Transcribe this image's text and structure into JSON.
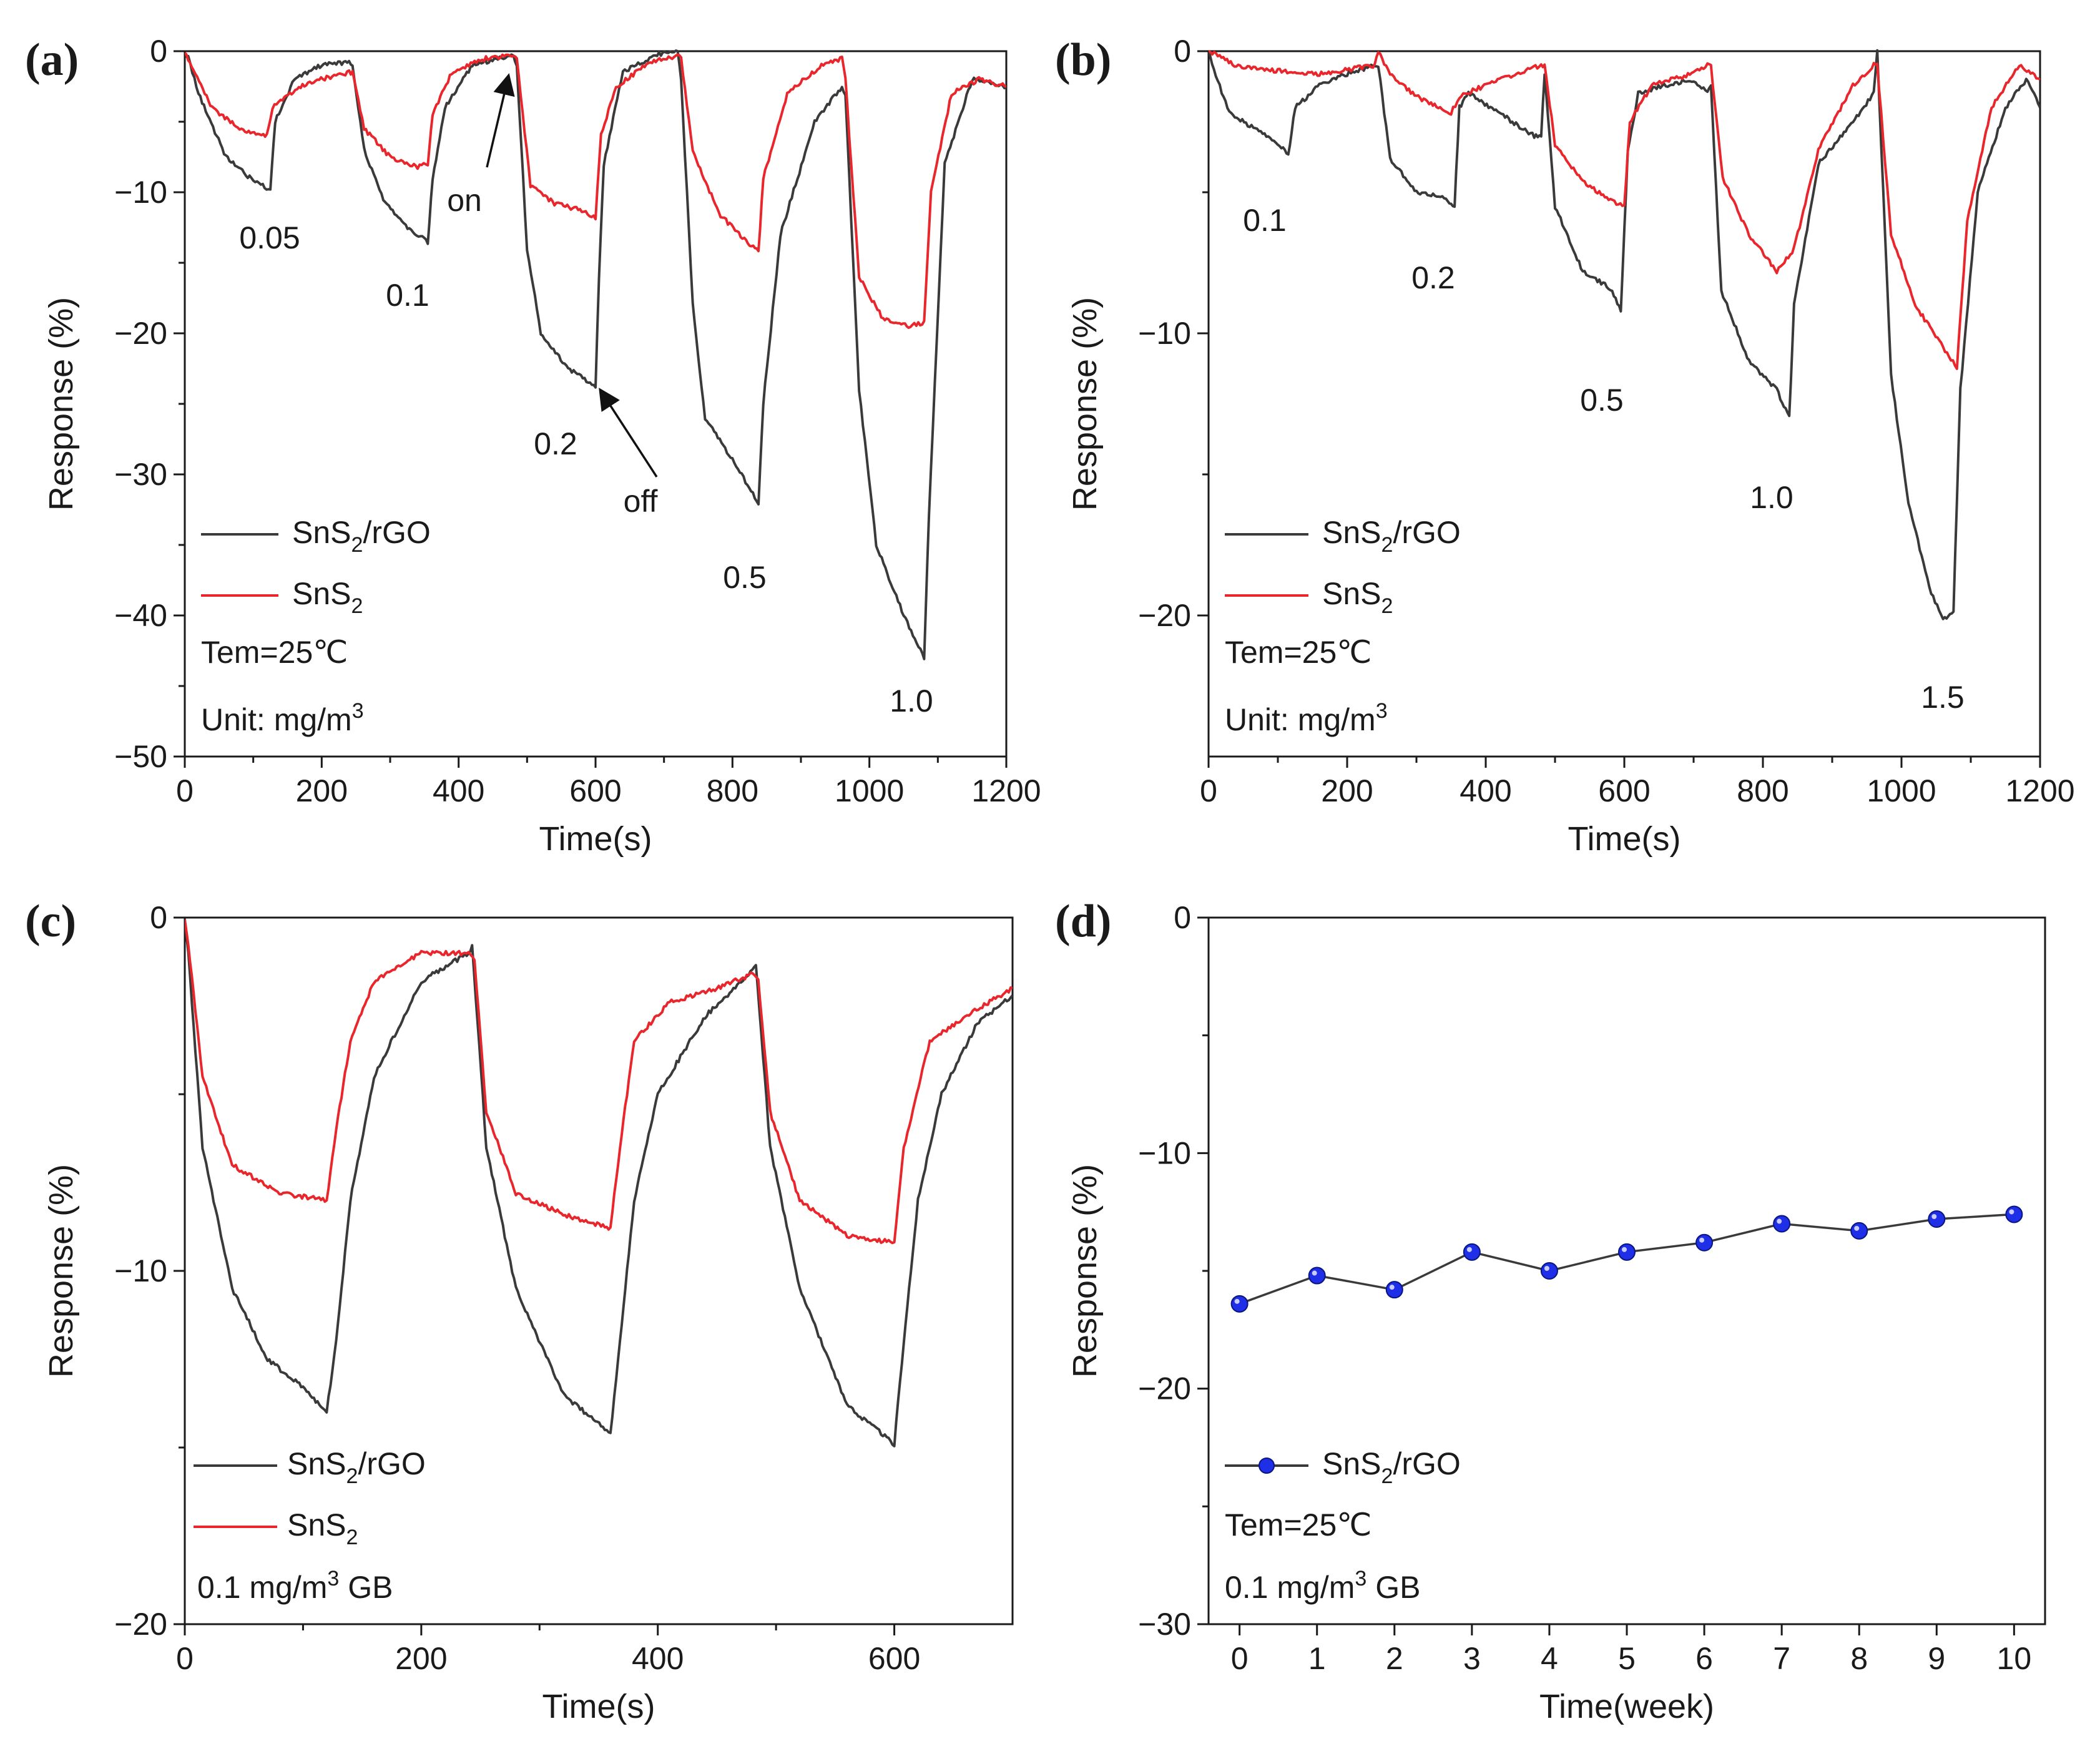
{
  "colors": {
    "rgo": "#3a3a3a",
    "sns2": "#e8262b",
    "marker": "#1f2fe8",
    "axis": "#1a1a1a"
  },
  "panels": [
    {
      "id": "a",
      "label": "(a)",
      "xlabel": "Time(s)",
      "ylabel": "Response (%)",
      "xlim": [
        0,
        1200
      ],
      "ylim": [
        -50,
        0
      ],
      "xticks": [
        0,
        200,
        400,
        600,
        800,
        1000,
        1200
      ],
      "yticks": [
        0,
        -10,
        -20,
        -30,
        -40,
        -50
      ],
      "legend": [
        {
          "series": "rgo",
          "main": "SnS",
          "sub": "2",
          "tail": "/rGO"
        },
        {
          "series": "sns2",
          "main": "SnS",
          "sub": "2",
          "tail": ""
        }
      ],
      "notes": [
        {
          "main": "Tem=25℃",
          "sup": ""
        },
        {
          "main": "Unit: mg/m",
          "sup": "3"
        }
      ],
      "concentrations": [
        "0.05",
        "0.1",
        "0.2",
        "0.5",
        "1.0"
      ],
      "arrows": {
        "on": "on",
        "off": "off"
      }
    },
    {
      "id": "b",
      "label": "(b)",
      "xlabel": "Time(s)",
      "ylabel": "Response (%)",
      "xlim": [
        0,
        1200
      ],
      "ylim": [
        -25,
        0
      ],
      "xticks": [
        0,
        200,
        400,
        600,
        800,
        1000,
        1200
      ],
      "yticks": [
        0,
        -10,
        -20
      ],
      "legend": [
        {
          "series": "rgo",
          "main": "SnS",
          "sub": "2",
          "tail": "/rGO"
        },
        {
          "series": "sns2",
          "main": "SnS",
          "sub": "2",
          "tail": ""
        }
      ],
      "notes": [
        {
          "main": "Tem=25℃",
          "sup": ""
        },
        {
          "main": "Unit: mg/m",
          "sup": "3"
        }
      ],
      "concentrations": [
        "0.1",
        "0.2",
        "0.5",
        "1.0",
        "1.5"
      ]
    },
    {
      "id": "c",
      "label": "(c)",
      "xlabel": "Time(s)",
      "ylabel": "Response (%)",
      "xlim": [
        0,
        700
      ],
      "ylim": [
        -20,
        0
      ],
      "xticks": [
        0,
        200,
        400,
        600
      ],
      "yticks": [
        0,
        -10,
        -20
      ],
      "legend": [
        {
          "series": "rgo",
          "main": "SnS",
          "sub": "2",
          "tail": "/rGO"
        },
        {
          "series": "sns2",
          "main": "SnS",
          "sub": "2",
          "tail": ""
        }
      ],
      "notes": [
        {
          "main": "0.1 mg/m",
          "sup": "3",
          "tail": " GB"
        }
      ]
    },
    {
      "id": "d",
      "label": "(d)",
      "xlabel": "Time(week)",
      "ylabel": "Response (%)",
      "xlim": [
        -0.4,
        10.4
      ],
      "ylim": [
        -30,
        0
      ],
      "xticks": [
        0,
        1,
        2,
        3,
        4,
        5,
        6,
        7,
        8,
        9,
        10
      ],
      "yticks": [
        0,
        -10,
        -20,
        -30
      ],
      "legend": [
        {
          "series": "marker",
          "main": "SnS",
          "sub": "2",
          "tail": "/rGO"
        }
      ],
      "notes": [
        {
          "main": "Tem=25℃",
          "sup": ""
        },
        {
          "main": "0.1 mg/m",
          "sup": "3",
          "tail": " GB"
        }
      ]
    }
  ],
  "chart_data": [
    {
      "panel": "a",
      "type": "line",
      "title": "",
      "xlabel": "Time(s)",
      "ylabel": "Response (%)",
      "xlim": [
        0,
        1200
      ],
      "ylim": [
        -50,
        0
      ],
      "series": [
        {
          "name": "SnS2/rGO",
          "color": "#3a3a3a",
          "x": [
            0,
            5,
            20,
            60,
            100,
            125,
            132,
            160,
            200,
            240,
            245,
            262,
            290,
            320,
            355,
            362,
            380,
            420,
            460,
            480,
            485,
            500,
            520,
            560,
            600,
            605,
            612,
            640,
            690,
            720,
            725,
            742,
            760,
            800,
            838,
            845,
            870,
            920,
            960,
            965,
            985,
            1010,
            1050,
            1080,
            1087,
            1110,
            1150,
            1200
          ],
          "y": [
            0,
            -0.5,
            -3,
            -7.5,
            -9.2,
            -9.8,
            -5,
            -2,
            -1,
            -0.8,
            -1,
            -7,
            -10.5,
            -12.3,
            -13.5,
            -9,
            -4,
            -1,
            -0.5,
            -0.3,
            -1,
            -14,
            -20,
            -22.5,
            -23.8,
            -16,
            -8,
            -1.5,
            -0.2,
            -0.1,
            -2,
            -18,
            -26,
            -29,
            -32,
            -25,
            -13,
            -5,
            -2.5,
            -3,
            -24,
            -35,
            -40,
            -43,
            -33,
            -8,
            -2,
            -2.5
          ]
        },
        {
          "name": "SnS2",
          "color": "#e8262b",
          "x": [
            0,
            10,
            40,
            80,
            120,
            128,
            140,
            180,
            240,
            245,
            262,
            300,
            340,
            355,
            362,
            390,
            440,
            480,
            485,
            505,
            540,
            580,
            600,
            608,
            630,
            680,
            720,
            725,
            742,
            780,
            820,
            838,
            845,
            880,
            930,
            960,
            965,
            985,
            1020,
            1060,
            1080,
            1090,
            1120,
            1160,
            1200
          ],
          "y": [
            0,
            -1,
            -4,
            -5.5,
            -6,
            -4,
            -3.5,
            -2.2,
            -1.5,
            -1.5,
            -5.5,
            -7.5,
            -8.2,
            -8,
            -4.5,
            -1.5,
            -0.5,
            -0.3,
            -0.5,
            -9.5,
            -10.8,
            -11.3,
            -11.8,
            -6,
            -2.5,
            -0.8,
            -0.3,
            -0.5,
            -7,
            -11.5,
            -13.5,
            -14.2,
            -9,
            -3,
            -1,
            -0.5,
            -2,
            -16,
            -19,
            -19.5,
            -19.2,
            -10,
            -3,
            -2,
            -2.5
          ]
        }
      ],
      "annotations": [
        "0.05",
        "0.1",
        "0.2",
        "0.5",
        "1.0",
        "on",
        "off"
      ]
    },
    {
      "panel": "b",
      "type": "line",
      "title": "",
      "xlabel": "Time(s)",
      "ylabel": "Response (%)",
      "xlim": [
        0,
        1200
      ],
      "ylim": [
        -25,
        0
      ],
      "series": [
        {
          "name": "SnS2/rGO",
          "color": "#3a3a3a",
          "x": [
            0,
            5,
            30,
            70,
            105,
            115,
            125,
            160,
            200,
            240,
            245,
            262,
            300,
            340,
            355,
            362,
            375,
            420,
            470,
            480,
            485,
            500,
            540,
            580,
            595,
            605,
            620,
            660,
            700,
            720,
            725,
            740,
            780,
            820,
            838,
            845,
            880,
            930,
            960,
            965,
            985,
            1010,
            1040,
            1060,
            1075,
            1085,
            1110,
            1150,
            1180,
            1200
          ],
          "y": [
            0,
            -0.5,
            -2.2,
            -2.8,
            -3.4,
            -3.7,
            -2,
            -1.2,
            -0.8,
            -0.5,
            -0.5,
            -3.8,
            -5,
            -5.2,
            -5.5,
            -2,
            -1.5,
            -2.2,
            -3,
            -3,
            -0.8,
            -5.5,
            -7.8,
            -8.4,
            -9.2,
            -3.5,
            -1.5,
            -1.2,
            -1,
            -1.5,
            -1.2,
            -8.5,
            -11,
            -12,
            -13,
            -9,
            -4,
            -2.5,
            -1.5,
            0,
            -11.5,
            -16,
            -19,
            -20.2,
            -19.8,
            -12,
            -5,
            -2,
            -1,
            -2
          ]
        },
        {
          "name": "SnS2",
          "color": "#e8262b",
          "x": [
            0,
            40,
            100,
            160,
            240,
            245,
            262,
            300,
            350,
            362,
            420,
            480,
            485,
            500,
            540,
            580,
            600,
            608,
            640,
            700,
            720,
            725,
            742,
            780,
            820,
            845,
            880,
            930,
            960,
            965,
            985,
            1020,
            1060,
            1080,
            1095,
            1130,
            1170,
            1200
          ],
          "y": [
            0,
            -0.5,
            -0.7,
            -0.8,
            -0.5,
            0,
            -0.8,
            -1.6,
            -2.2,
            -1.6,
            -1,
            -0.5,
            -0.5,
            -3.3,
            -4.6,
            -5.3,
            -5.5,
            -2.5,
            -1.2,
            -0.8,
            -0.5,
            -0.5,
            -4.5,
            -6.5,
            -7.8,
            -7,
            -3.5,
            -1.2,
            -0.5,
            -0.5,
            -6.5,
            -9,
            -10.5,
            -11.2,
            -6,
            -2,
            -0.5,
            -1
          ]
        }
      ],
      "annotations": [
        "0.1",
        "0.2",
        "0.5",
        "1.0",
        "1.5"
      ]
    },
    {
      "panel": "c",
      "type": "line",
      "title": "",
      "xlabel": "Time(s)",
      "ylabel": "Response (%)",
      "xlim": [
        0,
        700
      ],
      "ylim": [
        -20,
        0
      ],
      "series": [
        {
          "name": "SnS2/rGO",
          "color": "#3a3a3a",
          "x": [
            0,
            3,
            15,
            40,
            70,
            100,
            120,
            128,
            140,
            160,
            200,
            240,
            243,
            255,
            280,
            320,
            360,
            368,
            380,
            400,
            440,
            480,
            483,
            495,
            520,
            560,
            600,
            608,
            620,
            640,
            670,
            700
          ],
          "y": [
            0,
            -1,
            -6.5,
            -10.5,
            -12.5,
            -13.3,
            -14,
            -12,
            -8,
            -4.5,
            -1.8,
            -1,
            -0.8,
            -6.5,
            -10.5,
            -13.5,
            -14.6,
            -12,
            -8,
            -5,
            -2.8,
            -1.5,
            -1.3,
            -6.5,
            -10.5,
            -13.8,
            -14.9,
            -12,
            -8,
            -5,
            -3,
            -2.2
          ]
        },
        {
          "name": "SnS2",
          "color": "#e8262b",
          "x": [
            0,
            3,
            15,
            40,
            80,
            120,
            128,
            140,
            160,
            200,
            240,
            245,
            255,
            280,
            320,
            360,
            368,
            380,
            410,
            450,
            480,
            485,
            495,
            520,
            560,
            600,
            608,
            630,
            660,
            700
          ],
          "y": [
            0,
            -0.8,
            -4.5,
            -7,
            -7.8,
            -8,
            -6,
            -3.5,
            -1.8,
            -1,
            -1,
            -1.2,
            -5.5,
            -7.8,
            -8.4,
            -8.8,
            -6.5,
            -3.5,
            -2.4,
            -2,
            -1.6,
            -1.8,
            -5.5,
            -8,
            -9,
            -9.2,
            -6.5,
            -3.5,
            -2.8,
            -2
          ]
        }
      ],
      "annotations": []
    },
    {
      "panel": "d",
      "type": "scatter",
      "title": "",
      "xlabel": "Time(week)",
      "ylabel": "Response (%)",
      "xlim": [
        -0.4,
        10.4
      ],
      "ylim": [
        -30,
        0
      ],
      "series": [
        {
          "name": "SnS2/rGO",
          "color": "#1f2fe8",
          "x": [
            0,
            1,
            2,
            3,
            4,
            5,
            6,
            7,
            8,
            9,
            10
          ],
          "y": [
            -16.4,
            -15.2,
            -15.8,
            -14.2,
            -15,
            -14.2,
            -13.8,
            -13,
            -13.3,
            -12.8,
            -12.6
          ]
        }
      ],
      "annotations": []
    }
  ]
}
